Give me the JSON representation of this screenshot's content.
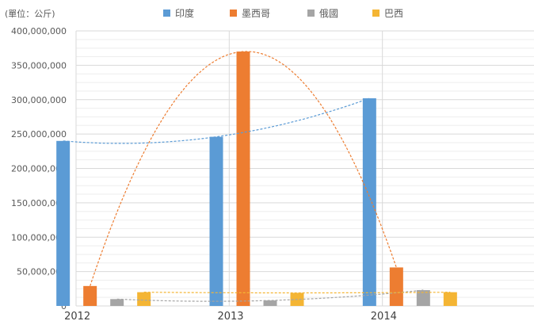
{
  "chart_data": {
    "type": "bar",
    "unit_label": "(單位：公斤)",
    "categories": [
      "2012",
      "2013",
      "2014"
    ],
    "series": [
      {
        "name": "印度",
        "color": "#5B9BD5",
        "values": [
          240000000,
          246000000,
          302000000
        ]
      },
      {
        "name": "墨西哥",
        "color": "#ED7D31",
        "values": [
          29000000,
          370000000,
          56000000
        ]
      },
      {
        "name": "俄國",
        "color": "#A5A5A5",
        "values": [
          10000000,
          8000000,
          23000000
        ]
      },
      {
        "name": "巴西",
        "color": "#F4B534",
        "values": [
          20000000,
          19000000,
          20000000
        ]
      }
    ],
    "ylim": [
      0,
      400000000
    ],
    "y_ticks": [
      "0",
      "50,000,000",
      "100,000,000",
      "150,000,000",
      "200,000,000",
      "250,000,000",
      "300,000,000",
      "350,000,000",
      "400,000,000"
    ],
    "trendlines": "polynomial per series (dashed)",
    "legend_position": "top",
    "grid": true
  }
}
